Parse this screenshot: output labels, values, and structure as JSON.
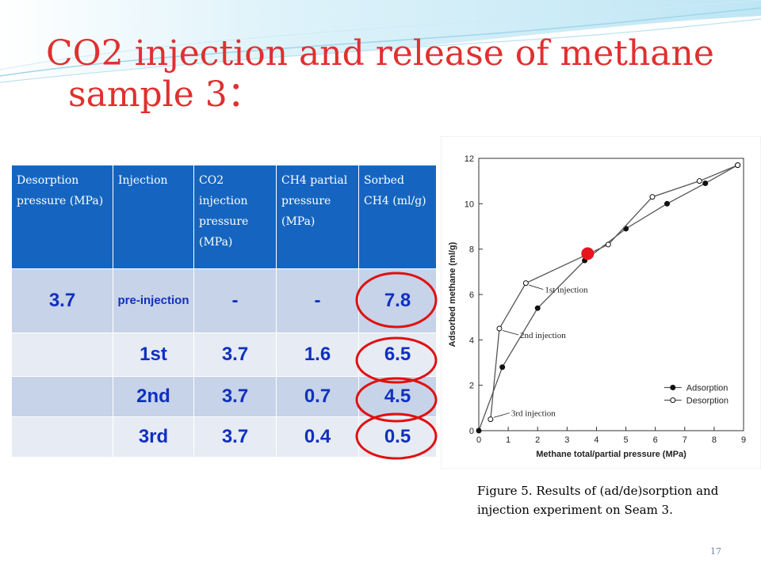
{
  "title": {
    "line1": "CO2 injection and release of methane",
    "line2": "sample 3："
  },
  "table": {
    "headers": [
      "Desorption pressure (MPa)",
      "Injection",
      "CO2 injection pressure (MPa)",
      "CH4 partial pressure (MPa)",
      "Sorbed CH4 (ml/g)"
    ],
    "rows": [
      [
        "3.7",
        "pre-injection",
        "-",
        "-",
        "7.8"
      ],
      [
        "",
        "1st",
        "3.7",
        "1.6",
        "6.5"
      ],
      [
        "",
        "2nd",
        "3.7",
        "0.7",
        "4.5"
      ],
      [
        "",
        "3rd",
        "3.7",
        "0.4",
        "0.5"
      ]
    ]
  },
  "chart_data": {
    "type": "line",
    "xlabel": "Methane total/partial pressure (MPa)",
    "ylabel": "Adsorbed methane (ml/g)",
    "xlim": [
      0,
      9
    ],
    "ylim": [
      0,
      12
    ],
    "xticks": [
      "0",
      "1",
      "2",
      "3",
      "4",
      "5",
      "6",
      "7",
      "8",
      "9"
    ],
    "yticks": [
      "0",
      "2",
      "4",
      "6",
      "8",
      "10",
      "12"
    ],
    "legend_position": "bottom-right",
    "series": [
      {
        "name": "Adsorption",
        "marker": "filled-circle",
        "x": [
          0,
          0.8,
          2.0,
          3.6,
          5.0,
          6.4,
          7.7,
          8.8
        ],
        "y": [
          0,
          2.8,
          5.4,
          7.5,
          8.9,
          10.0,
          10.9,
          11.7
        ]
      },
      {
        "name": "Desorption",
        "marker": "open-circle",
        "x": [
          0.4,
          0.7,
          1.6,
          4.4,
          5.9,
          7.5,
          8.8
        ],
        "y": [
          0.5,
          4.5,
          6.5,
          8.2,
          10.3,
          11.0,
          11.7
        ]
      }
    ],
    "annotations": [
      {
        "text": "1st injection",
        "x": 1.6,
        "y": 6.5
      },
      {
        "text": "2nd injection",
        "x": 0.7,
        "y": 4.5
      },
      {
        "text": "3rd injection",
        "x": 0.4,
        "y": 0.5
      }
    ],
    "highlight": {
      "x": 3.7,
      "y": 7.8,
      "color": "#e8141e"
    }
  },
  "caption": "Figure 5. Results of (ad/de)sorption and injection experiment on Seam 3.",
  "page_number": "17",
  "colors": {
    "title": "#e03030",
    "header_bg": "#1565c0",
    "row_dark": "#c6d3e8",
    "row_light": "#e6ebf4",
    "cell_text": "#1030c0",
    "oval": "#e01010"
  }
}
